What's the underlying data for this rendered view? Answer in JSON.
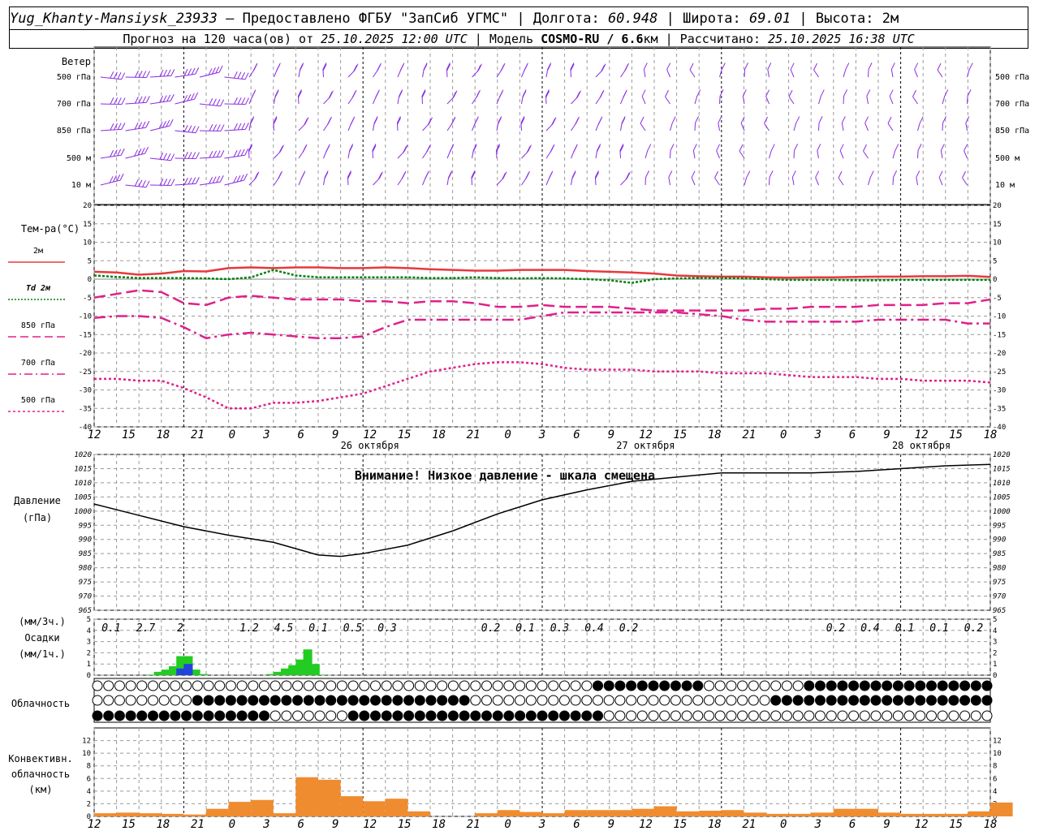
{
  "header": {
    "station": "Yug_Khanty-Mansiysk_23933",
    "provider": " — Предоставлено ФГБУ \"ЗапСиб УГМС\" | ",
    "lon_label": "Долгота: ",
    "lon": "60.948",
    "lat_label": " | Широта: ",
    "lat": "69.01",
    "alt_label": " | Высота: ",
    "alt": "2м",
    "forecast_label": "Прогноз на 120 часа(ов) от ",
    "forecast_start": "25.10.2025 12:00 UTC",
    "model_label": " | Модель ",
    "model": "COSMO-RU / 6.6",
    "model_unit": "км",
    "computed_label": " | Рассчитано: ",
    "computed": "25.10.2025 16:38 UTC"
  },
  "colors": {
    "wind": "#8a2be2",
    "t2m": "#e8383d",
    "td": "#00800a",
    "t850": "#e0208a",
    "t700": "#e0208a",
    "t500": "#e0208a",
    "pressure": "#000000",
    "precip3h": "#22cc22",
    "precip1h": "#2244dd",
    "convective": "#f08c30",
    "grid": "#999999"
  },
  "time_axis": {
    "hours_labels": [
      "12",
      "15",
      "18",
      "21",
      "0",
      "3",
      "6",
      "9",
      "12",
      "15",
      "18",
      "21",
      "0",
      "3",
      "6",
      "9",
      "12",
      "15",
      "18",
      "21",
      "0",
      "3",
      "6",
      "9",
      "12",
      "15",
      "18"
    ],
    "date_labels": [
      "26 октября",
      "27 октября",
      "28 октября"
    ]
  },
  "wind_panel": {
    "title": "Ветер",
    "levels": [
      "500 гПа",
      "700 гПа",
      "850 гПа",
      "500 м",
      "10  м"
    ]
  },
  "temp_panel": {
    "title": "Тем-ра(°C)",
    "legend": [
      {
        "label": "2м",
        "style": "solid",
        "color_key": "t2m"
      },
      {
        "label": "Td  2м",
        "style": "dotted",
        "color_key": "td"
      },
      {
        "label": "850 гПа",
        "style": "dash",
        "color_key": "t850"
      },
      {
        "label": "700 гПа",
        "style": "dashdot",
        "color_key": "t700"
      },
      {
        "label": "500 гПа",
        "style": "dot",
        "color_key": "t500"
      }
    ],
    "yticks": [
      "20",
      "15",
      "10",
      "5",
      "0",
      "-5",
      "-10",
      "-15",
      "-20",
      "-25",
      "-30",
      "-35",
      "-40"
    ]
  },
  "pressure_panel": {
    "title": "Давление",
    "unit": "(гПа)",
    "warning": "Внимание! Низкое давление - шкала смещена",
    "yticks": [
      "1020",
      "1015",
      "1010",
      "1005",
      "1000",
      "995",
      "990",
      "985",
      "980",
      "975",
      "970",
      "965"
    ]
  },
  "precip_panel": {
    "title": "Осадки",
    "unit_3h": "(мм/3ч.)",
    "unit_1h": "(мм/1ч.)",
    "yticks": [
      "5",
      "4",
      "3",
      "2",
      "1",
      "0"
    ],
    "totals": [
      "0.1",
      "2.7",
      "2",
      "",
      "1.2",
      "4.5",
      "0.1",
      "0.5",
      "0.3",
      "",
      "",
      "0.2",
      "0.1",
      "0.3",
      "0.4",
      "0.2",
      "",
      "",
      "",
      "",
      "",
      "0.2",
      "0.4",
      "0.1",
      "0.1",
      "0.2"
    ]
  },
  "cloud_panel": {
    "title": "Облачность"
  },
  "conv_panel": {
    "title": "Конвективн.",
    "title2": "облачность",
    "unit": "(км)",
    "yticks": [
      "12",
      "10",
      "8",
      "6",
      "4",
      "2",
      "0"
    ]
  },
  "chart_data": [
    {
      "type": "line",
      "title": "Тем-ра(°C)",
      "x_hours": [
        0,
        3,
        6,
        9,
        12,
        15,
        18,
        21,
        24,
        27,
        30,
        33,
        36,
        39,
        42,
        45,
        48,
        51,
        54,
        57,
        60,
        63,
        66,
        69,
        72,
        75,
        78,
        81,
        84,
        87,
        90,
        93,
        96,
        99,
        102,
        105,
        108,
        111,
        114,
        117,
        120
      ],
      "series": [
        {
          "name": "2м",
          "values": [
            2,
            1.8,
            1.2,
            1.5,
            2.2,
            2.1,
            3,
            3.2,
            3,
            3.2,
            3.2,
            3,
            3,
            3.2,
            3,
            2.7,
            2.5,
            2.3,
            2.3,
            2.5,
            2.5,
            2.5,
            2.2,
            2,
            1.8,
            1.5,
            1,
            0.8,
            0.7,
            0.7,
            0.5,
            0.4,
            0.5,
            0.5,
            0.6,
            0.7,
            0.7,
            0.8,
            0.8,
            0.9,
            0.6
          ]
        },
        {
          "name": "Td  2м",
          "values": [
            1,
            0.6,
            0.3,
            0.3,
            0.3,
            0.2,
            0,
            0.5,
            2.5,
            1,
            0.5,
            0.5,
            0.5,
            0.5,
            0.5,
            0.3,
            0.3,
            0.5,
            0.3,
            0.2,
            0.3,
            0.2,
            0,
            -0.3,
            -1,
            0,
            0.2,
            0.3,
            0.3,
            0.2,
            0,
            -0.2,
            -0.2,
            -0.2,
            -0.3,
            -0.3,
            -0.2,
            -0.2,
            -0.2,
            -0.2,
            -0.2
          ]
        },
        {
          "name": "850 гПа",
          "values": [
            -5,
            -4,
            -3,
            -3.5,
            -6.5,
            -7,
            -5,
            -4.5,
            -5,
            -5.5,
            -5.5,
            -5.5,
            -6,
            -6,
            -6.5,
            -6,
            -6,
            -6.5,
            -7.5,
            -7.5,
            -7,
            -7.5,
            -7.5,
            -7.5,
            -8,
            -8.5,
            -8.5,
            -8.5,
            -8.5,
            -8.5,
            -8,
            -8,
            -7.5,
            -7.5,
            -7.5,
            -7,
            -7,
            -7,
            -6.5,
            -6.5,
            -5.5
          ]
        },
        {
          "name": "700 гПа",
          "values": [
            -10.5,
            -10,
            -10,
            -10.5,
            -13,
            -16,
            -15,
            -14.5,
            -15,
            -15.5,
            -16,
            -16,
            -15.5,
            -13,
            -11,
            -11,
            -11,
            -11,
            -11,
            -11,
            -10,
            -9,
            -9,
            -9,
            -9,
            -9,
            -9,
            -9.5,
            -10,
            -11,
            -11.5,
            -11.5,
            -11.5,
            -11.5,
            -11.5,
            -11,
            -11,
            -11,
            -11,
            -12,
            -12
          ]
        },
        {
          "name": "500 гПа",
          "values": [
            -27,
            -27,
            -27.5,
            -27.5,
            -29.5,
            -32,
            -35,
            -35,
            -33.5,
            -33.5,
            -33,
            -32,
            -31,
            -29,
            -27,
            -25,
            -24,
            -23,
            -22.5,
            -22.5,
            -23,
            -24,
            -24.5,
            -24.5,
            -24.5,
            -25,
            -25,
            -25,
            -25.5,
            -25.5,
            -25.5,
            -26,
            -26.5,
            -26.5,
            -26.5,
            -27,
            -27,
            -27.5,
            -27.5,
            -27.5,
            -28
          ]
        }
      ],
      "xlabel": "",
      "ylabel": "",
      "ylim": [
        -40,
        20
      ]
    },
    {
      "type": "line",
      "title": "Давление",
      "x_hours": [
        0,
        6,
        12,
        18,
        24,
        30,
        33,
        36,
        42,
        48,
        54,
        60,
        66,
        72,
        78,
        84,
        90,
        96,
        102,
        108,
        114,
        120
      ],
      "series": [
        {
          "name": "",
          "values": [
            1002.5,
            998.5,
            994.5,
            991.5,
            989,
            984.5,
            984,
            985,
            988,
            993,
            999,
            1004,
            1007.5,
            1010.5,
            1012,
            1013.5,
            1013.5,
            1013.5,
            1014,
            1015,
            1016,
            1016.5
          ]
        }
      ],
      "ylim": [
        965,
        1020
      ]
    },
    {
      "type": "bar",
      "title": "Осадки",
      "x_hours": [
        3,
        4,
        5,
        6,
        7,
        8,
        9,
        10,
        11,
        12,
        13,
        14,
        15,
        16,
        17,
        18,
        19,
        20,
        21,
        22,
        23,
        24,
        25,
        26,
        27,
        28,
        29,
        30,
        31,
        32,
        33
      ],
      "series": [
        {
          "name": "(мм/3ч.)",
          "values": [
            0,
            0,
            0,
            0,
            0.05,
            0.3,
            0.5,
            0.8,
            1.7,
            1.7,
            0.5,
            0.1,
            0,
            0,
            0,
            0,
            0,
            0,
            0,
            0,
            0.1,
            0.3,
            0.6,
            0.9,
            1.4,
            2.3,
            1,
            0.05,
            0,
            0,
            0
          ]
        },
        {
          "name": "(мм/1ч.)",
          "values": [
            0,
            0,
            0,
            0,
            0,
            0,
            0,
            0,
            0.6,
            1,
            0,
            0,
            0,
            0,
            0,
            0,
            0,
            0,
            0,
            0,
            0,
            0,
            0,
            0,
            0,
            0,
            0,
            0,
            0,
            0,
            0
          ]
        }
      ],
      "ylim": [
        0,
        5
      ]
    },
    {
      "type": "bar",
      "title": "Конвективн. облачность",
      "x_hours": [
        0,
        3,
        6,
        9,
        12,
        15,
        18,
        21,
        24,
        27,
        30,
        33,
        36,
        39,
        42,
        45,
        48,
        51,
        54,
        57,
        60,
        63,
        66,
        69,
        72,
        75,
        78,
        81,
        84,
        87,
        90,
        93,
        96,
        99,
        102,
        105,
        108,
        111,
        114,
        117,
        120
      ],
      "series": [
        {
          "name": "(км)",
          "values": [
            0.5,
            0.6,
            0.5,
            0.4,
            0.3,
            1.2,
            2.3,
            2.6,
            0.5,
            6.2,
            5.8,
            3.2,
            2.4,
            2.8,
            0.8,
            0,
            0,
            0.5,
            1,
            0.7,
            0.5,
            1,
            1,
            1,
            1.2,
            1.6,
            0.8,
            0.9,
            1,
            0.6,
            0.4,
            0.4,
            0.6,
            1.2,
            1.2,
            0.6,
            0.4,
            0.4,
            0.4,
            0.8,
            2.2
          ]
        }
      ],
      "ylim": [
        0,
        14
      ]
    }
  ]
}
